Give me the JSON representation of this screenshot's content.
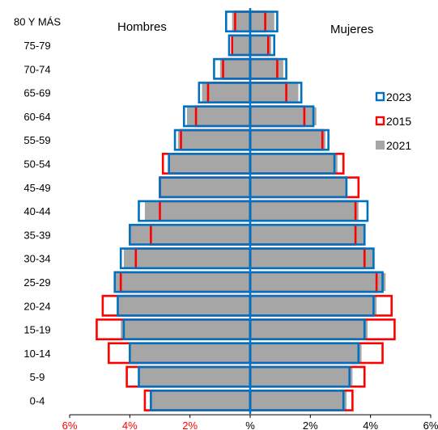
{
  "chart_data": {
    "type": "bar",
    "orientation": "horizontal",
    "subtype": "population-pyramid",
    "categories": [
      "0-4",
      "5-9",
      "10-14",
      "15-19",
      "20-24",
      "25-29",
      "30-34",
      "35-39",
      "40-44",
      "45-49",
      "50-54",
      "55-59",
      "60-64",
      "65-69",
      "70-74",
      "75-79",
      "80 Y MÁS"
    ],
    "x_ticks": [
      "6%",
      "4%",
      "2%",
      "%",
      "2%",
      "4%",
      "6%"
    ],
    "xlim": [
      -6,
      6
    ],
    "left_label": "Hombres",
    "right_label": "Mujeres",
    "series": [
      {
        "name": "2021",
        "style": "filled",
        "color": "#a6a6a6",
        "men": [
          3.3,
          3.7,
          4.0,
          4.3,
          4.4,
          4.5,
          4.2,
          4.0,
          3.5,
          3.0,
          2.7,
          2.4,
          2.1,
          1.6,
          1.0,
          0.6,
          0.6
        ],
        "women": [
          3.2,
          3.4,
          3.7,
          3.9,
          4.2,
          4.5,
          4.1,
          3.8,
          3.6,
          3.2,
          2.9,
          2.5,
          2.2,
          1.6,
          1.1,
          0.7,
          0.8
        ]
      },
      {
        "name": "2015",
        "style": "outline",
        "color": "#ff0000",
        "men": [
          3.5,
          4.1,
          4.7,
          5.1,
          4.9,
          4.3,
          3.8,
          3.3,
          3.0,
          3.0,
          2.9,
          2.3,
          1.8,
          1.4,
          0.9,
          0.6,
          0.5
        ],
        "women": [
          3.4,
          3.8,
          4.4,
          4.8,
          4.7,
          4.2,
          3.8,
          3.5,
          3.5,
          3.6,
          3.1,
          2.4,
          1.8,
          1.2,
          0.9,
          0.6,
          0.5
        ]
      },
      {
        "name": "2023",
        "style": "outline",
        "color": "#0070c0",
        "men": [
          3.3,
          3.7,
          4.0,
          4.2,
          4.4,
          4.5,
          4.3,
          4.0,
          3.7,
          3.0,
          2.7,
          2.5,
          2.2,
          1.7,
          1.2,
          0.7,
          0.8
        ],
        "women": [
          3.1,
          3.3,
          3.6,
          3.8,
          4.1,
          4.4,
          4.1,
          3.8,
          3.9,
          3.2,
          2.8,
          2.6,
          2.1,
          1.7,
          1.2,
          0.8,
          0.9
        ]
      }
    ],
    "legend": {
      "placement": "right",
      "entries": [
        {
          "name": "2023",
          "color": "#0070c0",
          "style": "outline"
        },
        {
          "name": "2015",
          "color": "#ff0000",
          "style": "outline"
        },
        {
          "name": "2021",
          "color": "#a6a6a6",
          "style": "filled"
        }
      ]
    },
    "colors": {
      "tick_negative": "#ff0000",
      "tick_positive": "#000000",
      "axis": "#0070c0"
    },
    "grid": false
  }
}
